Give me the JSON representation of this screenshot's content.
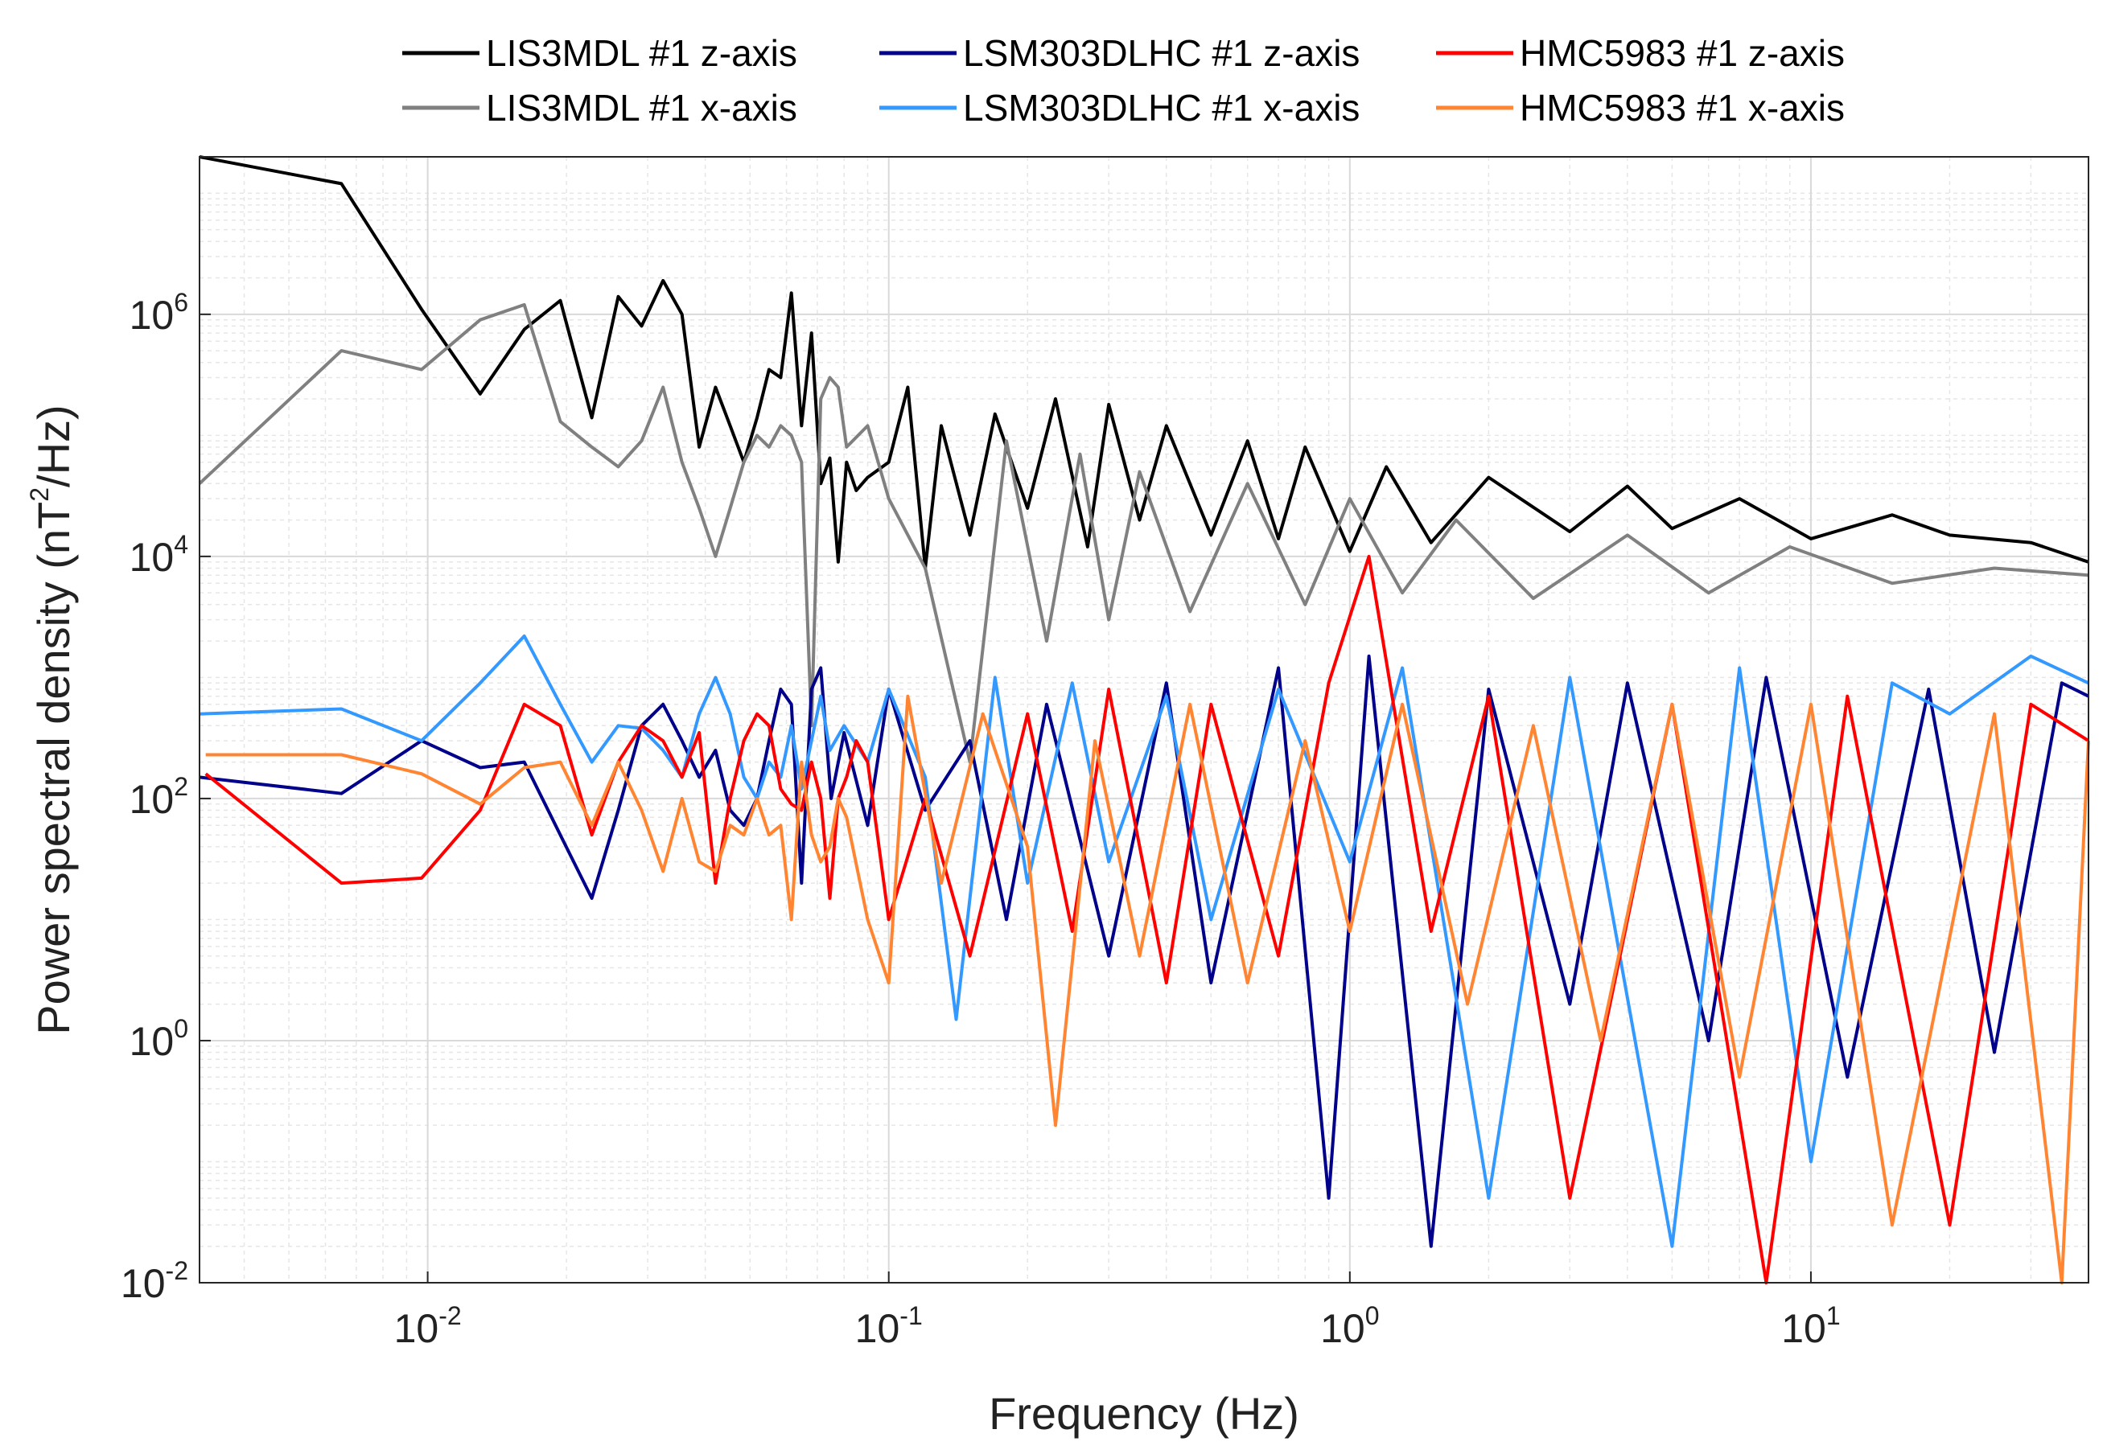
{
  "chart_data": {
    "type": "line",
    "title": "",
    "xlabel": "Frequency (Hz)",
    "ylabel_prefix": "Power spectral density (nT",
    "ylabel_sup": "2",
    "ylabel_suffix": "/Hz)",
    "xscale": "log",
    "yscale": "log",
    "xlim": [
      0.0032,
      40
    ],
    "ylim": [
      0.01,
      20000000
    ],
    "grid": true,
    "legend_position": "top",
    "x_ticks": [
      {
        "value": 0.01,
        "base": "10",
        "exp": "-2"
      },
      {
        "value": 0.1,
        "base": "10",
        "exp": "-1"
      },
      {
        "value": 1,
        "base": "10",
        "exp": "0"
      },
      {
        "value": 10,
        "base": "10",
        "exp": "1"
      }
    ],
    "y_ticks": [
      {
        "value": 0.01,
        "base": "10",
        "exp": "-2"
      },
      {
        "value": 1,
        "base": "10",
        "exp": "0"
      },
      {
        "value": 100,
        "base": "10",
        "exp": "2"
      },
      {
        "value": 10000,
        "base": "10",
        "exp": "4"
      },
      {
        "value": 1000000,
        "base": "10",
        "exp": "6"
      }
    ],
    "series": [
      {
        "name": "LIS3MDL #1 z-axis",
        "color": "#000000",
        "x": [
          0.0032,
          0.0065,
          0.0097,
          0.013,
          0.0162,
          0.0194,
          0.0227,
          0.0259,
          0.0291,
          0.0324,
          0.0356,
          0.0388,
          0.0421,
          0.0453,
          0.0485,
          0.0518,
          0.055,
          0.0583,
          0.0615,
          0.0647,
          0.068,
          0.0712,
          0.0745,
          0.0777,
          0.081,
          0.085,
          0.09,
          0.1,
          0.11,
          0.12,
          0.13,
          0.15,
          0.17,
          0.2,
          0.23,
          0.27,
          0.3,
          0.35,
          0.4,
          0.5,
          0.6,
          0.7,
          0.8,
          1.0,
          1.2,
          1.5,
          2,
          3,
          4,
          5,
          7,
          10,
          15,
          20,
          30,
          40
        ],
        "y": [
          25000000,
          12000000,
          1100000,
          220000,
          750000,
          1300000,
          140000,
          1400000,
          800000,
          1900000,
          1000000,
          80000,
          250000,
          120000,
          60000,
          140000,
          350000,
          300000,
          1500000,
          120000,
          700000,
          40000,
          65000,
          9000,
          60000,
          35000,
          45000,
          60000,
          250000,
          8000,
          120000,
          15000,
          150000,
          25000,
          200000,
          12000,
          180000,
          20000,
          120000,
          15000,
          90000,
          14000,
          80000,
          11000,
          55000,
          13000,
          45000,
          16000,
          38000,
          17000,
          30000,
          14000,
          22000,
          15000,
          13000,
          9000
        ]
      },
      {
        "name": "LIS3MDL #1 x-axis",
        "color": "#808080",
        "x": [
          0.0032,
          0.0065,
          0.0097,
          0.013,
          0.0162,
          0.0194,
          0.0227,
          0.0259,
          0.0291,
          0.0324,
          0.0356,
          0.0388,
          0.0421,
          0.0453,
          0.0485,
          0.0518,
          0.055,
          0.0583,
          0.0615,
          0.0647,
          0.068,
          0.0712,
          0.0745,
          0.0777,
          0.081,
          0.09,
          0.1,
          0.12,
          0.15,
          0.18,
          0.22,
          0.26,
          0.3,
          0.35,
          0.45,
          0.6,
          0.8,
          1.0,
          1.3,
          1.7,
          2.5,
          4,
          6,
          9,
          15,
          25,
          40
        ],
        "y": [
          40000,
          500000,
          350000,
          900000,
          1200000,
          130000,
          80000,
          55000,
          90000,
          250000,
          60000,
          25000,
          10000,
          25000,
          60000,
          100000,
          80000,
          120000,
          100000,
          60000,
          400,
          200000,
          300000,
          250000,
          80000,
          120000,
          30000,
          8000,
          200,
          90000,
          2000,
          70000,
          3000,
          50000,
          3500,
          40000,
          4000,
          30000,
          5000,
          20000,
          4500,
          15000,
          5000,
          12000,
          6000,
          8000,
          7000
        ]
      },
      {
        "name": "LSM303DLHC #1 z-axis",
        "color": "#00008b",
        "x": [
          0.0032,
          0.0065,
          0.0097,
          0.013,
          0.0162,
          0.0194,
          0.0227,
          0.0259,
          0.0291,
          0.0324,
          0.0356,
          0.0388,
          0.0421,
          0.0453,
          0.0485,
          0.0518,
          0.055,
          0.0583,
          0.0615,
          0.0647,
          0.068,
          0.0712,
          0.075,
          0.08,
          0.09,
          0.1,
          0.12,
          0.15,
          0.18,
          0.22,
          0.3,
          0.4,
          0.5,
          0.7,
          0.9,
          1.1,
          1.5,
          2,
          3,
          4,
          6,
          8,
          12,
          18,
          25,
          35,
          40
        ],
        "y": [
          150,
          110,
          300,
          180,
          200,
          50,
          15,
          80,
          400,
          600,
          300,
          150,
          250,
          80,
          60,
          100,
          300,
          800,
          600,
          20,
          800,
          1200,
          100,
          350,
          60,
          800,
          80,
          300,
          10,
          600,
          5,
          900,
          3,
          1200,
          0.05,
          1500,
          0.02,
          800,
          2,
          900,
          1,
          1000,
          0.5,
          800,
          0.8,
          900,
          700
        ]
      },
      {
        "name": "LSM303DLHC #1 x-axis",
        "color": "#3399ff",
        "x": [
          0.0032,
          0.0065,
          0.0097,
          0.013,
          0.0162,
          0.0194,
          0.0227,
          0.0259,
          0.0291,
          0.0324,
          0.0356,
          0.0388,
          0.0421,
          0.0453,
          0.0485,
          0.0518,
          0.055,
          0.0583,
          0.0615,
          0.0647,
          0.068,
          0.0712,
          0.0745,
          0.08,
          0.09,
          0.1,
          0.12,
          0.14,
          0.17,
          0.2,
          0.25,
          0.3,
          0.4,
          0.5,
          0.7,
          1.0,
          1.3,
          2,
          3,
          5,
          7,
          10,
          15,
          20,
          30,
          40
        ],
        "y": [
          500,
          550,
          300,
          900,
          2200,
          600,
          200,
          400,
          380,
          250,
          150,
          500,
          1000,
          500,
          150,
          100,
          200,
          150,
          400,
          120,
          300,
          700,
          250,
          400,
          200,
          800,
          150,
          1.5,
          1000,
          20,
          900,
          30,
          700,
          10,
          800,
          30,
          1200,
          0.05,
          1000,
          0.02,
          1200,
          0.1,
          900,
          500,
          1500,
          900
        ]
      },
      {
        "name": "HMC5983 #1 z-axis",
        "color": "#ff0000",
        "x": [
          0.0033,
          0.0065,
          0.0097,
          0.013,
          0.0162,
          0.0194,
          0.0227,
          0.0259,
          0.0291,
          0.0324,
          0.0356,
          0.0388,
          0.0421,
          0.0453,
          0.0485,
          0.0518,
          0.055,
          0.0583,
          0.0615,
          0.0647,
          0.068,
          0.0712,
          0.0745,
          0.0777,
          0.081,
          0.085,
          0.09,
          0.1,
          0.12,
          0.15,
          0.2,
          0.25,
          0.3,
          0.4,
          0.5,
          0.7,
          0.9,
          1.1,
          1.5,
          2,
          3,
          5,
          8,
          12,
          20,
          30,
          40
        ],
        "y": [
          160,
          20,
          22,
          80,
          600,
          400,
          50,
          200,
          400,
          300,
          150,
          350,
          20,
          100,
          300,
          500,
          400,
          120,
          90,
          80,
          200,
          100,
          15,
          100,
          150,
          300,
          200,
          10,
          100,
          5,
          500,
          8,
          800,
          3,
          600,
          5,
          900,
          10000,
          8,
          700,
          0.05,
          600,
          0.01,
          700,
          0.03,
          600,
          300
        ]
      },
      {
        "name": "HMC5983 #1 x-axis",
        "color": "#ff8533",
        "x": [
          0.0033,
          0.0065,
          0.0097,
          0.013,
          0.0162,
          0.0194,
          0.0227,
          0.0259,
          0.0291,
          0.0324,
          0.0356,
          0.0388,
          0.0421,
          0.0453,
          0.0485,
          0.0518,
          0.055,
          0.0583,
          0.0615,
          0.0647,
          0.068,
          0.0712,
          0.0745,
          0.0777,
          0.081,
          0.09,
          0.1,
          0.11,
          0.13,
          0.16,
          0.2,
          0.23,
          0.28,
          0.35,
          0.45,
          0.6,
          0.8,
          1.0,
          1.3,
          1.8,
          2.5,
          3.5,
          5,
          7,
          10,
          15,
          25,
          35,
          40
        ],
        "y": [
          230,
          230,
          160,
          90,
          180,
          200,
          60,
          200,
          80,
          25,
          100,
          30,
          25,
          60,
          50,
          100,
          50,
          60,
          10,
          200,
          50,
          30,
          40,
          100,
          70,
          10,
          3,
          700,
          20,
          500,
          40,
          0.2,
          300,
          5,
          600,
          3,
          300,
          8,
          600,
          2,
          400,
          1,
          600,
          0.5,
          600,
          0.03,
          500,
          0.01,
          300
        ]
      }
    ]
  }
}
